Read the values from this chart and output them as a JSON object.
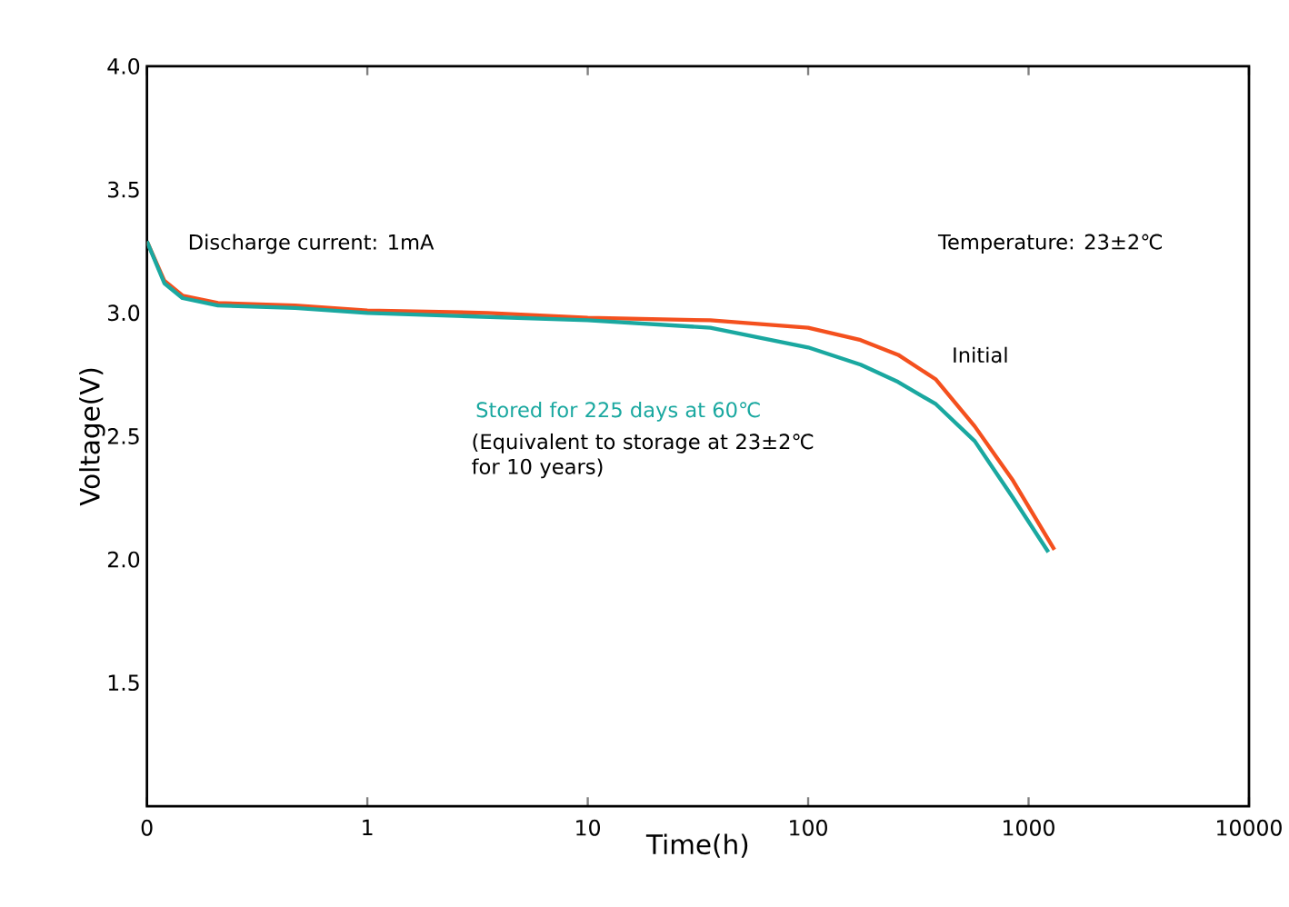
{
  "chart_data": {
    "type": "line",
    "xlabel": "Time(h)",
    "ylabel": "Voltage(V)",
    "log": "x",
    "xlim": [
      0.1,
      10000
    ],
    "xticks": [
      {
        "value": 0.1,
        "label": "0"
      },
      1,
      10,
      100,
      1000,
      10000
    ],
    "ylim": [
      1.0,
      4.0
    ],
    "yticks": [
      1.5,
      {
        "value": 2,
        "label": "2.0"
      },
      2.5,
      {
        "value": 3,
        "label": "3.0"
      },
      3.5,
      {
        "value": 4,
        "label": "4.0"
      }
    ],
    "series": [
      {
        "name": "Initial",
        "color": "#f4501e",
        "x": [
          0.1,
          0.12,
          0.145,
          0.21,
          0.47,
          1,
          3.5,
          10,
          36,
          100,
          173,
          256,
          380,
          570,
          850,
          1310
        ],
        "values": [
          3.29,
          3.13,
          3.07,
          3.04,
          3.03,
          3.01,
          3.0,
          2.98,
          2.97,
          2.94,
          2.89,
          2.83,
          2.73,
          2.54,
          2.32,
          2.04
        ]
      },
      {
        "name": "Stored for 225 days at 60℃",
        "color": "#1aa8a0",
        "x": [
          0.1,
          0.12,
          0.145,
          0.21,
          0.47,
          1,
          10,
          36,
          100,
          173,
          256,
          380,
          570,
          850,
          1230
        ],
        "values": [
          3.29,
          3.12,
          3.06,
          3.03,
          3.02,
          3.0,
          2.97,
          2.94,
          2.86,
          2.79,
          2.72,
          2.63,
          2.48,
          2.25,
          2.03
        ]
      }
    ],
    "annotations": [
      "Discharge current:  1mA",
      "Temperature:  23±2℃",
      "(Equivalent to storage at 23±2℃ for 10 years)"
    ],
    "grid": false,
    "legend": false,
    "line_style": "solid",
    "marker": "none"
  }
}
